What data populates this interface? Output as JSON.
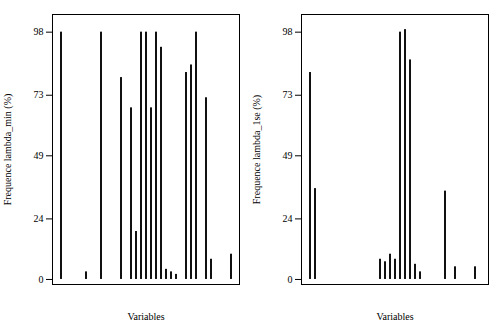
{
  "chart_data": [
    {
      "type": "bar",
      "xlabel": "Variables",
      "ylabel": "Frequence lambda_min (%)",
      "categories": [
        null,
        null,
        null,
        null,
        null,
        null,
        null,
        null,
        null,
        null,
        null,
        null,
        null,
        null,
        null,
        null,
        null,
        null,
        null,
        null,
        null,
        null,
        null,
        null,
        null,
        null,
        null,
        null,
        null,
        null,
        null,
        null,
        null,
        null,
        null
      ],
      "values": [
        98,
        0,
        0,
        0,
        0,
        3,
        0,
        0,
        98,
        0,
        0,
        0,
        80,
        0,
        68,
        19,
        98,
        98,
        68,
        98,
        92,
        4,
        3,
        2,
        0,
        82,
        85,
        98,
        0,
        72,
        8,
        0,
        0,
        0,
        10
      ],
      "color": "#111111",
      "ylim": [
        -2,
        105
      ],
      "yticks": [
        0,
        24,
        49,
        73,
        98
      ],
      "tick_labels": "y"
    },
    {
      "type": "bar",
      "xlabel": "Variables",
      "ylabel": "Frequence lambda_1se (%)",
      "categories": [
        null,
        null,
        null,
        null,
        null,
        null,
        null,
        null,
        null,
        null,
        null,
        null,
        null,
        null,
        null,
        null,
        null,
        null,
        null,
        null,
        null,
        null,
        null,
        null,
        null,
        null,
        null,
        null,
        null,
        null,
        null,
        null,
        null,
        null,
        null
      ],
      "values": [
        82,
        36,
        0,
        0,
        0,
        0,
        0,
        0,
        0,
        0,
        0,
        0,
        0,
        0,
        8,
        7,
        10,
        8,
        98,
        99,
        87,
        6,
        3,
        0,
        0,
        0,
        0,
        35,
        0,
        5,
        0,
        0,
        0,
        5,
        0
      ],
      "color": "#111111",
      "ylim": [
        -2,
        105
      ],
      "yticks": [
        0,
        24,
        49,
        73,
        98
      ],
      "tick_labels": "y"
    }
  ]
}
